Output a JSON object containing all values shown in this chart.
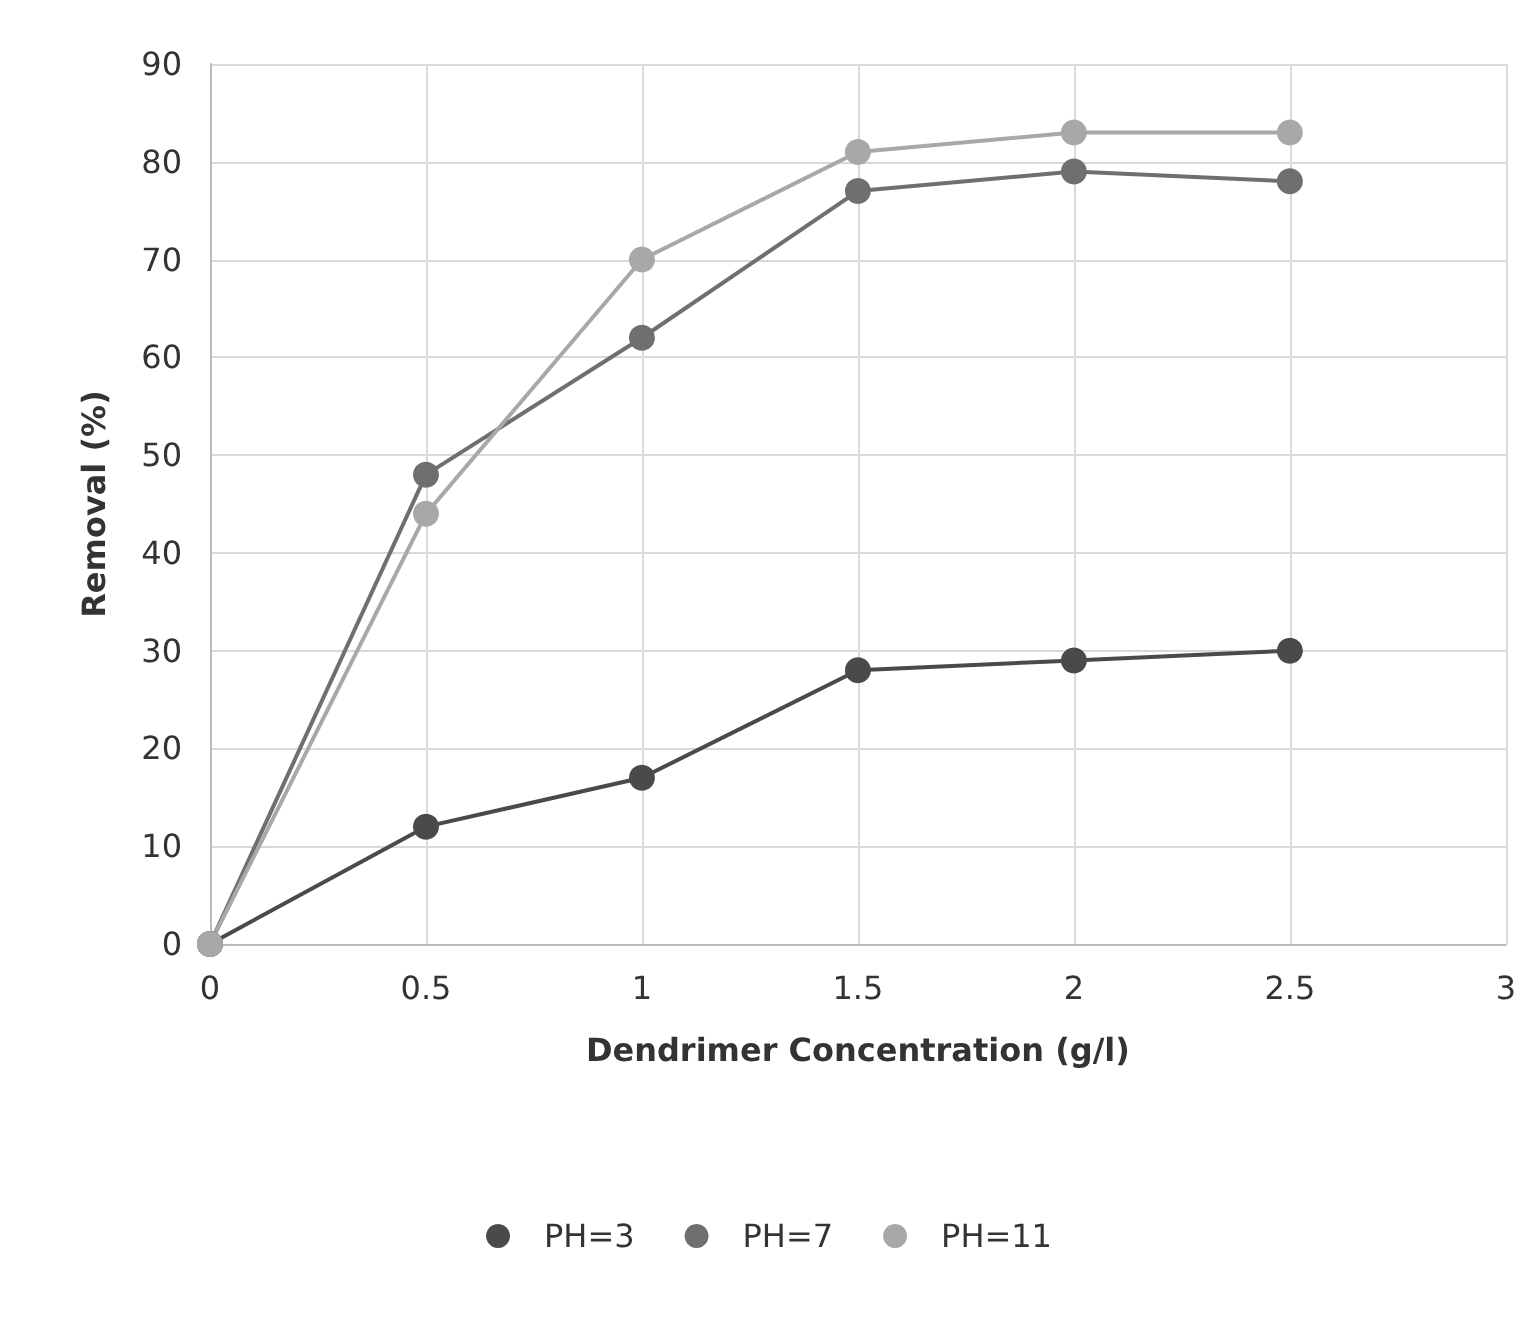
{
  "chart_data": {
    "type": "line",
    "xlabel": "Dendrimer Concentration (g/l)",
    "ylabel": "Removal (%)",
    "x": [
      0,
      0.5,
      1,
      1.5,
      2,
      2.5
    ],
    "series": [
      {
        "name": "PH=3",
        "color": "#4a4a4a",
        "values": [
          0,
          12,
          17,
          28,
          29,
          30
        ]
      },
      {
        "name": "PH=7",
        "color": "#6f6f6f",
        "values": [
          0,
          48,
          62,
          77,
          79,
          78
        ]
      },
      {
        "name": "PH=11",
        "color": "#a8a8a8",
        "values": [
          0,
          44,
          70,
          81,
          83,
          83
        ]
      }
    ],
    "xlim": [
      0,
      3
    ],
    "xticks": [
      0,
      0.5,
      1,
      1.5,
      2,
      2.5,
      3
    ],
    "ylim": [
      0,
      90
    ],
    "yticks": [
      0,
      10,
      20,
      30,
      40,
      50,
      60,
      70,
      80,
      90
    ],
    "grid": true,
    "legend": "bottom",
    "marker": "circle",
    "line_style": "solid"
  }
}
